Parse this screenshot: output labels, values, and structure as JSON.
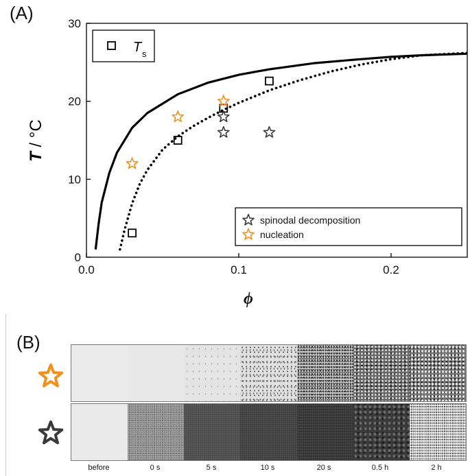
{
  "panel_a_label": "(A)",
  "panel_b_label": "(B)",
  "time_labels": [
    "before",
    "0 s",
    "5 s",
    "10 s",
    "20 s",
    "0.5 h",
    "2 h"
  ],
  "colors": {
    "orange": "#f0901e",
    "dark": "#3a3a3a",
    "black": "#000000"
  },
  "chart_data": {
    "type": "scatter",
    "xlabel": "ϕ",
    "ylabel_bold": "T",
    "ylabel_rest": " / °C",
    "xlim": [
      0.0,
      0.25
    ],
    "ylim": [
      0,
      30
    ],
    "xticks": [
      0.0,
      0.1,
      0.2
    ],
    "xtick_labels": [
      "0.0",
      "0.1",
      "0.2"
    ],
    "yticks": [
      0,
      10,
      20,
      30
    ],
    "ytick_labels": [
      "0",
      "10",
      "20",
      "30"
    ],
    "legend_top": {
      "symbol": "square",
      "label_main": "T",
      "label_sub": "s"
    },
    "legend_bottom": [
      {
        "symbol": "star",
        "color": "#3a3a3a",
        "label": "spinodal decomposition"
      },
      {
        "symbol": "star",
        "color": "#f0901e",
        "label": "nucleation"
      }
    ],
    "series": [
      {
        "name": "T",
        "marker": "square",
        "color": "#000000",
        "x": [
          0.03,
          0.06,
          0.09,
          0.12
        ],
        "y": [
          3.1,
          15.0,
          19.1,
          22.6
        ]
      },
      {
        "name": "spinodal decomposition",
        "marker": "star",
        "color": "#3a3a3a",
        "x": [
          0.09,
          0.09,
          0.12
        ],
        "y": [
          18.0,
          16.0,
          16.0
        ]
      },
      {
        "name": "nucleation",
        "marker": "star",
        "color": "#f0901e",
        "x": [
          0.03,
          0.06,
          0.09
        ],
        "y": [
          12.0,
          18.0,
          20.0
        ]
      }
    ],
    "curves": [
      {
        "style": "solid",
        "x": [
          0.006,
          0.008,
          0.01,
          0.015,
          0.02,
          0.03,
          0.04,
          0.06,
          0.08,
          0.1,
          0.12,
          0.15,
          0.18,
          0.2,
          0.22,
          0.25
        ],
        "y": [
          1.0,
          4.3,
          7.0,
          10.8,
          13.4,
          16.6,
          18.5,
          20.9,
          22.4,
          23.4,
          24.1,
          24.9,
          25.4,
          25.7,
          25.9,
          26.1
        ]
      },
      {
        "style": "dotted",
        "x": [
          0.022,
          0.025,
          0.03,
          0.035,
          0.04,
          0.05,
          0.06,
          0.07,
          0.08,
          0.09,
          0.1,
          0.12,
          0.14,
          0.16,
          0.18,
          0.2,
          0.22,
          0.25
        ],
        "y": [
          1.0,
          3.5,
          6.9,
          9.4,
          11.2,
          13.8,
          15.5,
          16.8,
          17.9,
          18.9,
          19.8,
          21.4,
          22.7,
          23.8,
          24.7,
          25.4,
          25.9,
          26.2
        ]
      }
    ]
  }
}
